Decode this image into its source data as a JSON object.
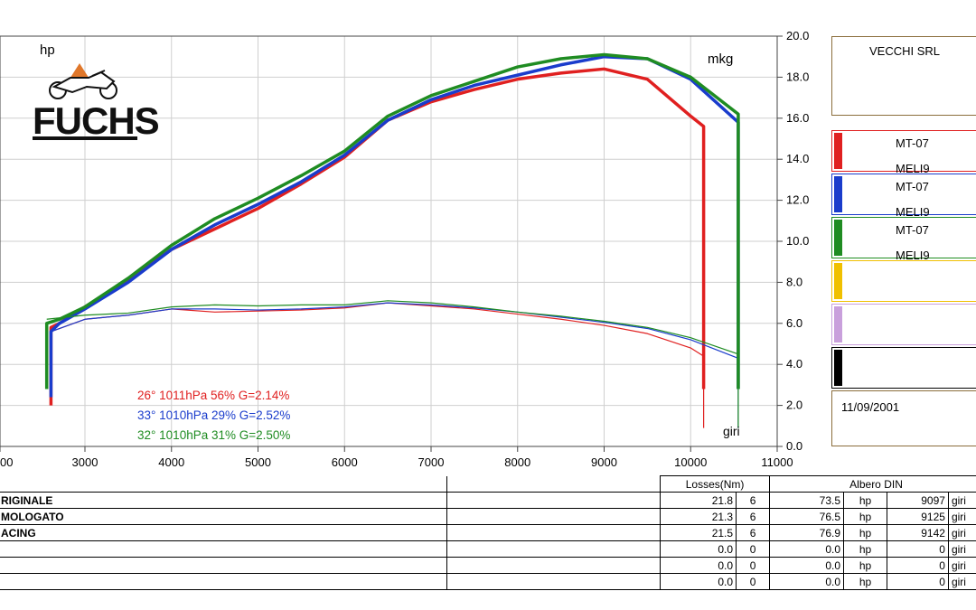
{
  "chart_data": {
    "type": "line",
    "x_label": "giri",
    "left_label": "hp",
    "right_label": "mkg",
    "x_ticks": [
      "00",
      "3000",
      "4000",
      "5000",
      "6000",
      "7000",
      "8000",
      "9000",
      "10000",
      "11000"
    ],
    "y_right_ticks": [
      "0.0",
      "2.0",
      "4.0",
      "6.0",
      "8.0",
      "10.0",
      "12.0",
      "14.0",
      "16.0",
      "18.0",
      "20.0"
    ],
    "x_range": [
      2000,
      11000
    ],
    "y_range": [
      0,
      20
    ],
    "grid": true,
    "series": [
      {
        "color": "#e02020",
        "power": [
          [
            2600,
            5.8
          ],
          [
            2700,
            6.0
          ],
          [
            3000,
            6.8
          ],
          [
            3500,
            8.1
          ],
          [
            4000,
            9.6
          ],
          [
            4500,
            10.6
          ],
          [
            5000,
            11.6
          ],
          [
            5500,
            12.8
          ],
          [
            6000,
            14.1
          ],
          [
            6500,
            15.9
          ],
          [
            7000,
            16.8
          ],
          [
            7500,
            17.4
          ],
          [
            8000,
            17.9
          ],
          [
            8500,
            18.2
          ],
          [
            9000,
            18.4
          ],
          [
            9500,
            17.9
          ],
          [
            10000,
            16.1
          ],
          [
            10150,
            15.6
          ]
        ],
        "torque": [
          [
            2600,
            5.6
          ],
          [
            3000,
            6.2
          ],
          [
            3500,
            6.4
          ],
          [
            4000,
            6.7
          ],
          [
            4500,
            6.55
          ],
          [
            5000,
            6.6
          ],
          [
            5500,
            6.65
          ],
          [
            6000,
            6.75
          ],
          [
            6500,
            7.0
          ],
          [
            7000,
            6.85
          ],
          [
            7500,
            6.7
          ],
          [
            8000,
            6.45
          ],
          [
            8500,
            6.2
          ],
          [
            9000,
            5.9
          ],
          [
            9500,
            5.5
          ],
          [
            10000,
            4.8
          ],
          [
            10150,
            4.4
          ]
        ]
      },
      {
        "color": "#1a3ccc",
        "power": [
          [
            2600,
            5.6
          ],
          [
            2700,
            6.0
          ],
          [
            3000,
            6.7
          ],
          [
            3500,
            8.0
          ],
          [
            4000,
            9.6
          ],
          [
            4500,
            10.8
          ],
          [
            5000,
            11.8
          ],
          [
            5500,
            12.9
          ],
          [
            6000,
            14.2
          ],
          [
            6500,
            15.9
          ],
          [
            7000,
            16.9
          ],
          [
            7500,
            17.6
          ],
          [
            8000,
            18.1
          ],
          [
            8500,
            18.6
          ],
          [
            9000,
            19.0
          ],
          [
            9500,
            18.9
          ],
          [
            10000,
            17.9
          ],
          [
            10550,
            15.8
          ]
        ],
        "torque": [
          [
            2600,
            5.6
          ],
          [
            3000,
            6.2
          ],
          [
            3500,
            6.4
          ],
          [
            4000,
            6.7
          ],
          [
            4500,
            6.7
          ],
          [
            5000,
            6.65
          ],
          [
            5500,
            6.7
          ],
          [
            6000,
            6.8
          ],
          [
            6500,
            7.0
          ],
          [
            7000,
            6.9
          ],
          [
            7500,
            6.75
          ],
          [
            8000,
            6.55
          ],
          [
            8500,
            6.3
          ],
          [
            9000,
            6.05
          ],
          [
            9500,
            5.75
          ],
          [
            10000,
            5.2
          ],
          [
            10550,
            4.3
          ]
        ]
      },
      {
        "color": "#1f8c22",
        "power": [
          [
            2550,
            6.0
          ],
          [
            2700,
            6.2
          ],
          [
            3000,
            6.8
          ],
          [
            3500,
            8.2
          ],
          [
            4000,
            9.8
          ],
          [
            4500,
            11.1
          ],
          [
            5000,
            12.1
          ],
          [
            5500,
            13.2
          ],
          [
            6000,
            14.4
          ],
          [
            6500,
            16.1
          ],
          [
            7000,
            17.1
          ],
          [
            7500,
            17.8
          ],
          [
            8000,
            18.5
          ],
          [
            8500,
            18.9
          ],
          [
            9000,
            19.1
          ],
          [
            9500,
            18.9
          ],
          [
            10000,
            18.0
          ],
          [
            10550,
            16.2
          ]
        ],
        "torque": [
          [
            2550,
            6.2
          ],
          [
            3000,
            6.4
          ],
          [
            3500,
            6.5
          ],
          [
            4000,
            6.8
          ],
          [
            4500,
            6.9
          ],
          [
            5000,
            6.85
          ],
          [
            5500,
            6.9
          ],
          [
            6000,
            6.9
          ],
          [
            6500,
            7.1
          ],
          [
            7000,
            7.0
          ],
          [
            7500,
            6.8
          ],
          [
            8000,
            6.55
          ],
          [
            8500,
            6.35
          ],
          [
            9000,
            6.1
          ],
          [
            9500,
            5.8
          ],
          [
            10000,
            5.3
          ],
          [
            10550,
            4.5
          ]
        ]
      }
    ],
    "conditions": [
      {
        "text": "26°  1011hPa  56%    G=2.14%",
        "color": "#e02020"
      },
      {
        "text": "33°  1010hPa  29%    G=2.52%",
        "color": "#1a3ccc"
      },
      {
        "text": "32°  1010hPa  31%    G=2.50%",
        "color": "#1f8c22"
      }
    ]
  },
  "logo": {
    "text": "FUCHS"
  },
  "company": "VECCHI SRL",
  "legend": [
    {
      "color": "#e02020",
      "line1": "MT-07",
      "line2": "MELI9"
    },
    {
      "color": "#1a3ccc",
      "line1": "MT-07",
      "line2": "MELI9"
    },
    {
      "color": "#1f8c22",
      "line1": "MT-07",
      "line2": "MELI9"
    },
    {
      "color": "#f0c000",
      "line1": "",
      "line2": ""
    },
    {
      "color": "#c9a0dc",
      "line1": "",
      "line2": ""
    },
    {
      "color": "#000000",
      "line1": "",
      "line2": ""
    }
  ],
  "date": "11/09/2001",
  "table": {
    "losses_header": "Losses(Nm)",
    "albero_header": "Albero DIN",
    "rows": [
      {
        "name": "RIGINALE",
        "loss": "21.8",
        "n": "6",
        "hp": "73.5",
        "unit": "hp",
        "rpm": "9097",
        "rpm_unit": "giri"
      },
      {
        "name": "MOLOGATO",
        "loss": "21.3",
        "n": "6",
        "hp": "76.5",
        "unit": "hp",
        "rpm": "9125",
        "rpm_unit": "giri"
      },
      {
        "name": "ACING",
        "loss": "21.5",
        "n": "6",
        "hp": "76.9",
        "unit": "hp",
        "rpm": "9142",
        "rpm_unit": "giri"
      },
      {
        "name": "",
        "loss": "0.0",
        "n": "0",
        "hp": "0.0",
        "unit": "hp",
        "rpm": "0",
        "rpm_unit": "giri"
      },
      {
        "name": "",
        "loss": "0.0",
        "n": "0",
        "hp": "0.0",
        "unit": "hp",
        "rpm": "0",
        "rpm_unit": "giri"
      },
      {
        "name": "",
        "loss": "0.0",
        "n": "0",
        "hp": "0.0",
        "unit": "hp",
        "rpm": "0",
        "rpm_unit": "giri"
      }
    ]
  }
}
